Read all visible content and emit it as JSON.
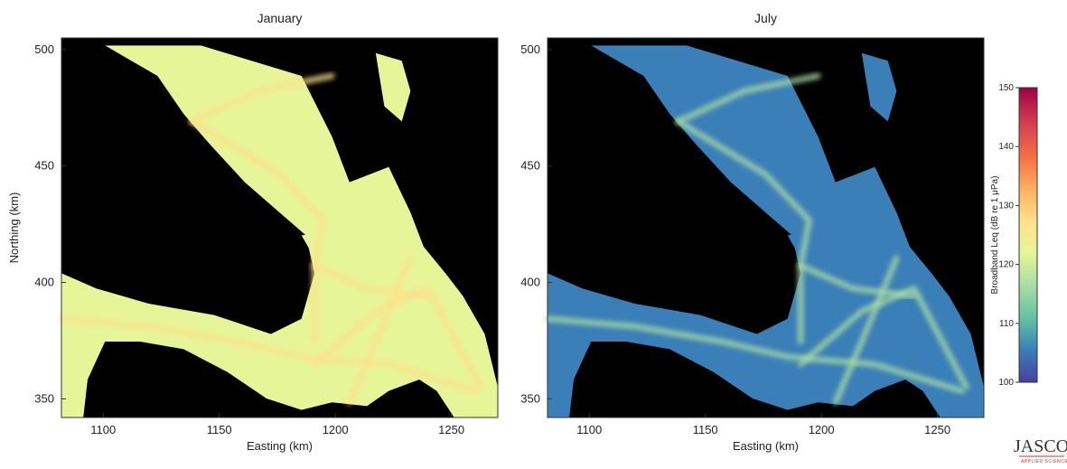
{
  "chart_data": {
    "type": "heatmap",
    "colorbar": {
      "title": "Broadband Leq (dB re 1 μPa)",
      "range": [
        100,
        150
      ],
      "ticks": [
        100,
        110,
        120,
        130,
        140,
        150
      ],
      "colormap": [
        "#4a3f9f",
        "#3a7fb8",
        "#66c2a5",
        "#abdda4",
        "#e6f598",
        "#fee08b",
        "#fdae61",
        "#f46d43",
        "#d53e4f",
        "#9e0142"
      ]
    },
    "panels": [
      {
        "title": "January",
        "xlabel": "Easting (km)",
        "ylabel": "Northing (km)",
        "xlim": [
          1082,
          1270
        ],
        "ylim": [
          342,
          505
        ],
        "xticks": [
          1100,
          1150,
          1200,
          1250
        ],
        "yticks": [
          350,
          400,
          450,
          500
        ],
        "typical_level_db": 120
      },
      {
        "title": "July",
        "xlabel": "Easting (km)",
        "ylabel": "",
        "xlim": [
          1082,
          1270
        ],
        "ylim": [
          342,
          505
        ],
        "xticks": [
          1100,
          1150,
          1200,
          1250
        ],
        "yticks": [
          350,
          400,
          450,
          500
        ],
        "typical_level_db": 108
      }
    ]
  },
  "logo": {
    "name": "JASCO",
    "tagline": "APPLIED SCIENCES"
  }
}
